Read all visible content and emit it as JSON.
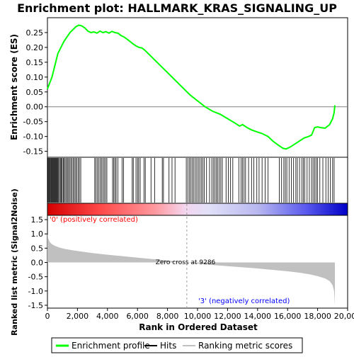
{
  "chart_data": {
    "title": "Enrichment plot: HALLMARK_KRAS_SIGNALING_UP",
    "type": "line",
    "top_panel": {
      "ylabel": "Enrichment score (ES)",
      "ylim": [
        -0.17,
        0.3
      ],
      "yticks": [
        "0.25",
        "0.20",
        "0.15",
        "0.10",
        "0.05",
        "0.00",
        "-0.05",
        "-0.10",
        "-0.15"
      ],
      "ytick_values": [
        0.25,
        0.2,
        0.15,
        0.1,
        0.05,
        0.0,
        -0.05,
        -0.1,
        -0.15
      ],
      "series_color": "#00ff00",
      "x": [
        0,
        150,
        300,
        500,
        700,
        900,
        1100,
        1300,
        1500,
        1700,
        1900,
        2100,
        2300,
        2500,
        2700,
        2900,
        3100,
        3300,
        3500,
        3700,
        3900,
        4100,
        4300,
        4500,
        4700,
        4900,
        5100,
        5300,
        5500,
        5700,
        5900,
        6100,
        6300,
        6500,
        7000,
        7500,
        8000,
        8500,
        9000,
        9500,
        10000,
        10500,
        11000,
        11500,
        12000,
        12500,
        12800,
        13000,
        13300,
        13600,
        14000,
        14300,
        14700,
        15000,
        15400,
        15700,
        15900,
        16200,
        16500,
        16800,
        17100,
        17400,
        17600,
        17800,
        18000,
        18200,
        18500,
        18800,
        19000,
        19100,
        19150
      ],
      "y": [
        0.06,
        0.08,
        0.1,
        0.14,
        0.18,
        0.2,
        0.22,
        0.235,
        0.25,
        0.26,
        0.27,
        0.275,
        0.272,
        0.265,
        0.255,
        0.25,
        0.252,
        0.248,
        0.255,
        0.25,
        0.253,
        0.248,
        0.254,
        0.25,
        0.248,
        0.24,
        0.235,
        0.228,
        0.22,
        0.212,
        0.205,
        0.2,
        0.198,
        0.19,
        0.165,
        0.14,
        0.115,
        0.09,
        0.065,
        0.04,
        0.02,
        0.0,
        -0.015,
        -0.025,
        -0.04,
        -0.055,
        -0.065,
        -0.06,
        -0.07,
        -0.078,
        -0.085,
        -0.09,
        -0.1,
        -0.115,
        -0.13,
        -0.14,
        -0.142,
        -0.135,
        -0.125,
        -0.115,
        -0.105,
        -0.1,
        -0.095,
        -0.07,
        -0.068,
        -0.07,
        -0.072,
        -0.06,
        -0.04,
        -0.02,
        0.005
      ]
    },
    "hits": [
      30,
      80,
      120,
      170,
      220,
      260,
      310,
      350,
      400,
      450,
      500,
      540,
      590,
      640,
      690,
      740,
      800,
      860,
      920,
      980,
      1050,
      1100,
      1180,
      1260,
      1330,
      1400,
      1480,
      1560,
      1640,
      1720,
      1800,
      1880,
      1960,
      2050,
      2130,
      2220,
      3150,
      3230,
      3320,
      3420,
      3510,
      3600,
      3690,
      3780,
      3870,
      3960,
      4340,
      4420,
      4500,
      4580,
      4700,
      4980,
      5070,
      5650,
      5720,
      5900,
      6000,
      6080,
      6180,
      6430,
      6520,
      6900,
      7150,
      7650,
      7730,
      8100,
      8300,
      8500,
      9250,
      9350,
      9450,
      9550,
      9650,
      9750,
      9850,
      9950,
      10050,
      10150,
      10250,
      10350,
      10450,
      10600,
      10800,
      10950,
      11050,
      11150,
      11250,
      11350,
      11450,
      11550,
      11650,
      11900,
      12050,
      12200,
      12350,
      12750,
      12900,
      13000,
      13100,
      13200,
      13400,
      13600,
      13750,
      13950,
      14100,
      14300,
      14500,
      14700,
      15450,
      15600,
      15750,
      15850,
      15950,
      16100,
      16250,
      16400,
      16550,
      16650,
      16800,
      16950,
      17050,
      17150,
      17300,
      17450,
      17600,
      17700,
      17800,
      17900,
      18000,
      18150,
      18350,
      18550,
      18700,
      18850,
      19000,
      19100
    ],
    "middle_panel": {
      "label_pos": "'0' (positively correlated)",
      "label_pos_color": "#ff0000",
      "label_neg": "'3' (negatively correlated)",
      "label_neg_color": "#0000ff"
    },
    "bottom_panel": {
      "ylabel": "Ranked list metric (Signal2Noise)",
      "ylim": [
        -1.6,
        1.65
      ],
      "yticks": [
        "1.5",
        "1.0",
        "0.5",
        "0.0",
        "-0.5",
        "-1.0",
        "-1.5"
      ],
      "ytick_values": [
        1.5,
        1.0,
        0.5,
        0.0,
        -0.5,
        -1.0,
        -1.5
      ],
      "fill_color": "#c0c0c0",
      "zero_cross_label": "Zero cross at 9286",
      "zero_cross": 9286,
      "x": [
        0,
        50,
        150,
        300,
        500,
        800,
        1200,
        2000,
        3000,
        4000,
        5000,
        6000,
        7000,
        8000,
        9286,
        10000,
        11000,
        12000,
        13000,
        14000,
        15000,
        16000,
        16800,
        17500,
        18000,
        18500,
        18800,
        19000,
        19100,
        19150
      ],
      "y": [
        1.0,
        0.85,
        0.72,
        0.64,
        0.58,
        0.52,
        0.47,
        0.4,
        0.33,
        0.27,
        0.22,
        0.17,
        0.12,
        0.07,
        0.0,
        -0.04,
        -0.09,
        -0.13,
        -0.17,
        -0.21,
        -0.26,
        -0.31,
        -0.36,
        -0.42,
        -0.48,
        -0.56,
        -0.65,
        -0.8,
        -1.0,
        -1.5
      ]
    },
    "xlabel": "Rank in Dataset",
    "xlabel_full": "Rank in Ordered Dataset",
    "xlim": [
      0,
      20000
    ],
    "xticks": [
      "0",
      "2,000",
      "4,000",
      "6,000",
      "8,000",
      "10,000",
      "12,000",
      "14,000",
      "16,000",
      "18,000",
      "20,000"
    ],
    "xtick_values": [
      0,
      2000,
      4000,
      6000,
      8000,
      10000,
      12000,
      14000,
      16000,
      18000,
      20000
    ],
    "legend": {
      "placement": "bottom",
      "items": [
        {
          "label": "Enrichment profile",
          "color": "#00ff00"
        },
        {
          "label": "Hits",
          "color": "#000000"
        },
        {
          "label": "Ranking metric scores",
          "color": "#c0c0c0"
        }
      ]
    }
  }
}
